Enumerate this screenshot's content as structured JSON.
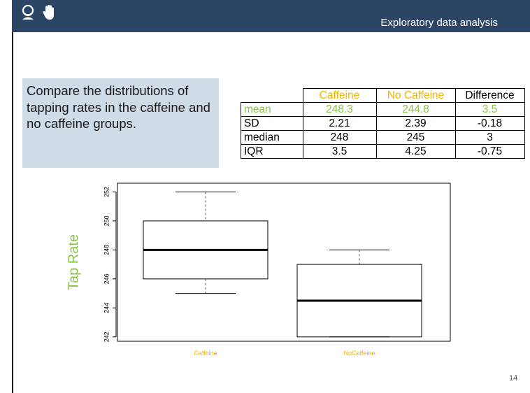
{
  "header": {
    "title": "Exploratory data analysis",
    "icons": [
      "student-icon",
      "raised-hand-icon"
    ]
  },
  "prompt": {
    "text": "Compare the distributions of tapping rates in the caffeine and no caffeine groups."
  },
  "stats_table": {
    "columns": [
      "",
      "Caffeine",
      "No Caffeine",
      "Difference"
    ],
    "rows": [
      {
        "label": "mean",
        "caffeine": "248.3",
        "no_caffeine": "244.8",
        "difference": "3.5"
      },
      {
        "label": "SD",
        "caffeine": "2.21",
        "no_caffeine": "2.39",
        "difference": "-0.18"
      },
      {
        "label": "median",
        "caffeine": "248",
        "no_caffeine": "245",
        "difference": "3"
      },
      {
        "label": "IQR",
        "caffeine": "3.5",
        "no_caffeine": "4.25",
        "difference": "-0.75"
      }
    ]
  },
  "colors": {
    "header_bg": "#2d4565",
    "accent_orange": "#f4b400",
    "accent_green": "#8bc34a",
    "prompt_bg": "#cfdbe6"
  },
  "chart_data": {
    "type": "box",
    "ylabel": "Tap Rate",
    "yticks": [
      242,
      244,
      246,
      248,
      250,
      252
    ],
    "ylim": [
      241.7,
      252.6
    ],
    "categories": [
      "Caffeine",
      "NoCaffeine"
    ],
    "boxes": [
      {
        "name": "Caffeine",
        "min": 245,
        "q1": 246,
        "median": 248,
        "q3": 250,
        "max": 252
      },
      {
        "name": "NoCaffeine",
        "min": 242,
        "q1": 242,
        "median": 244.5,
        "q3": 247,
        "max": 248
      }
    ]
  },
  "page": {
    "number": "14"
  }
}
